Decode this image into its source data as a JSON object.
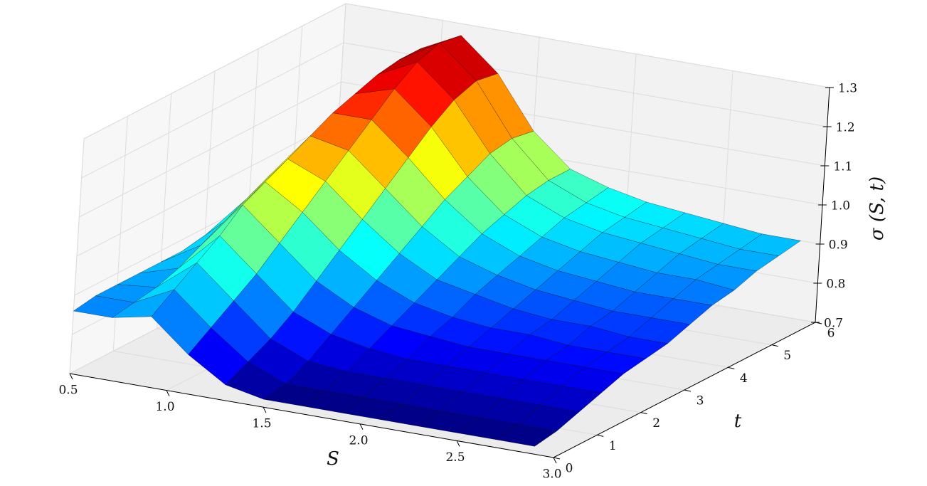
{
  "chart_data": {
    "type": "surface",
    "x_label": "S",
    "y_label": "t",
    "z_label": "σ (S, t)",
    "colormap": "jet",
    "grid": true,
    "x": [
      0.5,
      0.7,
      0.9,
      1.1,
      1.3,
      1.5,
      1.7,
      1.9,
      2.1,
      2.3,
      2.5,
      2.7,
      2.9
    ],
    "y": [
      0,
      0.5,
      1,
      1.5,
      2,
      2.5,
      3,
      3.5,
      4,
      4.5,
      5,
      5.5,
      6
    ],
    "z": [
      [
        0.86,
        0.86,
        0.88,
        0.8,
        0.74,
        0.72,
        0.72,
        0.72,
        0.72,
        0.72,
        0.72,
        0.72,
        0.72
      ],
      [
        0.87,
        0.87,
        0.92,
        0.84,
        0.77,
        0.73,
        0.73,
        0.73,
        0.73,
        0.73,
        0.73,
        0.73,
        0.73
      ],
      [
        0.87,
        0.88,
        0.96,
        0.88,
        0.8,
        0.76,
        0.75,
        0.75,
        0.75,
        0.75,
        0.75,
        0.75,
        0.75
      ],
      [
        0.87,
        0.9,
        1.0,
        0.92,
        0.84,
        0.8,
        0.78,
        0.77,
        0.77,
        0.77,
        0.77,
        0.77,
        0.77
      ],
      [
        0.87,
        0.93,
        1.05,
        0.97,
        0.89,
        0.84,
        0.81,
        0.8,
        0.79,
        0.79,
        0.79,
        0.79,
        0.79
      ],
      [
        0.87,
        0.96,
        1.08,
        1.02,
        0.94,
        0.88,
        0.84,
        0.82,
        0.81,
        0.81,
        0.8,
        0.8,
        0.8
      ],
      [
        0.88,
        0.99,
        1.11,
        1.07,
        0.99,
        0.92,
        0.87,
        0.85,
        0.83,
        0.82,
        0.82,
        0.81,
        0.81
      ],
      [
        0.88,
        1.02,
        1.14,
        1.12,
        1.04,
        0.96,
        0.9,
        0.87,
        0.85,
        0.84,
        0.83,
        0.83,
        0.83
      ],
      [
        0.88,
        1.04,
        1.17,
        1.17,
        1.09,
        1.0,
        0.93,
        0.89,
        0.87,
        0.86,
        0.85,
        0.85,
        0.85
      ],
      [
        0.89,
        1.06,
        1.19,
        1.22,
        1.14,
        1.03,
        0.95,
        0.91,
        0.89,
        0.88,
        0.87,
        0.87,
        0.86
      ],
      [
        0.89,
        1.07,
        1.21,
        1.26,
        1.18,
        1.06,
        0.97,
        0.93,
        0.91,
        0.9,
        0.89,
        0.88,
        0.88
      ],
      [
        0.9,
        1.08,
        1.22,
        1.28,
        1.2,
        1.07,
        0.98,
        0.94,
        0.92,
        0.91,
        0.9,
        0.89,
        0.89
      ],
      [
        0.9,
        1.08,
        1.22,
        1.27,
        1.19,
        1.06,
        0.98,
        0.95,
        0.93,
        0.92,
        0.91,
        0.9,
        0.9
      ]
    ],
    "xlim": [
      0.5,
      3.0
    ],
    "xticks": [
      0.5,
      {
        "value": 1,
        "label": "1.0"
      },
      1.5,
      {
        "value": 2,
        "label": "2.0"
      },
      2.5,
      {
        "value": 3,
        "label": "3.0"
      }
    ],
    "ylim": [
      0,
      6
    ],
    "yticks": [
      0,
      1,
      2,
      3,
      4,
      5,
      6
    ],
    "zlim": [
      0.7,
      1.3
    ],
    "zticks": [
      0.7,
      0.8,
      0.9,
      {
        "value": 1,
        "label": "1.0"
      },
      1.1,
      1.2,
      1.3
    ]
  }
}
